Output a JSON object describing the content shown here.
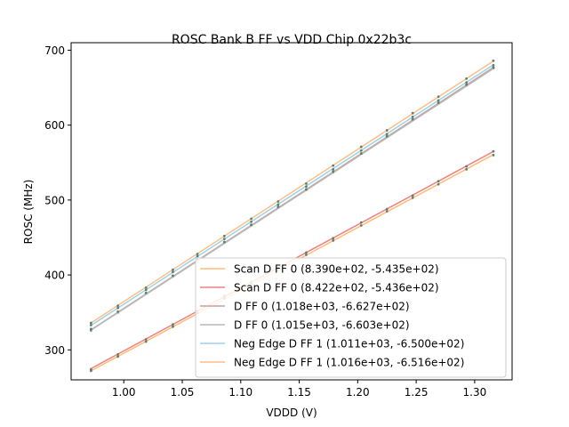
{
  "chart_data": {
    "type": "line",
    "title": "ROSC Bank B FF vs VDD Chip 0x22b3c",
    "xlabel": "VDDD (V)",
    "ylabel": "ROSC (MHz)",
    "xlim": [
      0.955,
      1.332
    ],
    "ylim": [
      260,
      710
    ],
    "xticks": [
      1.0,
      1.05,
      1.1,
      1.15,
      1.2,
      1.25,
      1.3
    ],
    "xtick_labels": [
      "1.00",
      "1.05",
      "1.10",
      "1.15",
      "1.20",
      "1.25",
      "1.30"
    ],
    "yticks": [
      300,
      400,
      500,
      600,
      700
    ],
    "ytick_labels": [
      "300",
      "400",
      "500",
      "600",
      "700"
    ],
    "grid": false,
    "legend_position": "lower right",
    "x": [
      0.972,
      0.995,
      1.019,
      1.042,
      1.063,
      1.086,
      1.109,
      1.132,
      1.156,
      1.179,
      1.203,
      1.225,
      1.247,
      1.269,
      1.293,
      1.316
    ],
    "series": [
      {
        "name": "Scan D FF 0 (8.390e+02, -5.435e+02)",
        "color": "#ffbb78",
        "slope": 839.0,
        "intercept": -543.5,
        "points": [
          272,
          291,
          311,
          331,
          349,
          369,
          388,
          407,
          427,
          446,
          466,
          485,
          503,
          521,
          541,
          560
        ]
      },
      {
        "name": "Scan D FF 0 (8.422e+02, -5.436e+02)",
        "color": "#f08080",
        "slope": 842.2,
        "intercept": -543.6,
        "points": [
          274,
          294,
          314,
          334,
          352,
          372,
          391,
          410,
          430,
          449,
          470,
          488,
          506,
          525,
          545,
          565
        ]
      },
      {
        "name": "D FF 0 (1.018e+03, -6.627e+02)",
        "color": "#c8a29e",
        "slope": 1018.0,
        "intercept": -662.7,
        "points": [
          326,
          350,
          375,
          398,
          419,
          443,
          466,
          490,
          514,
          537,
          562,
          585,
          607,
          629,
          653,
          676
        ]
      },
      {
        "name": "D FF 0 (1.015e+03, -6.603e+02)",
        "color": "#b8b8b8",
        "slope": 1015.0,
        "intercept": -660.3,
        "points": [
          328,
          351,
          376,
          399,
          421,
          444,
          467,
          491,
          514,
          538,
          562,
          585,
          608,
          630,
          654,
          677
        ]
      },
      {
        "name": "Neg Edge D FF 1 (1.011e+03, -6.500e+02)",
        "color": "#9bd3ea",
        "slope": 1011.0,
        "intercept": -650.0,
        "points": [
          333,
          356,
          380,
          404,
          425,
          448,
          471,
          494,
          518,
          541,
          566,
          588,
          611,
          633,
          657,
          680
        ]
      },
      {
        "name": "Neg Edge D FF 1 (1.016e+03, -6.516e+02)",
        "color": "#ffbe86",
        "slope": 1016.0,
        "intercept": -651.6,
        "points": [
          336,
          359,
          383,
          407,
          428,
          452,
          475,
          498,
          522,
          546,
          571,
          593,
          616,
          638,
          662,
          686
        ]
      }
    ]
  }
}
